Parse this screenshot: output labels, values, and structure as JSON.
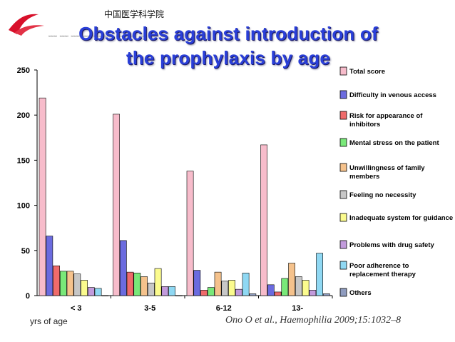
{
  "logo": {
    "text": "中国医学科学院"
  },
  "slide": {
    "title_line1": "Obstacles against introduction of",
    "title_line2": "the prophylaxis by age",
    "xunit": "yrs of age",
    "citation": "Ono O et al., Haemophilia 2009;15:1032–8"
  },
  "chart_data": {
    "type": "bar",
    "title": "Obstacles against introduction of the prophylaxis by age",
    "xlabel": "yrs of age",
    "ylabel": "",
    "ylim": [
      0,
      250
    ],
    "yticks": [
      0,
      50,
      100,
      150,
      200,
      250
    ],
    "categories": [
      "< 3",
      "3-5",
      "6-12",
      "13-"
    ],
    "legend_position": "right",
    "series": [
      {
        "name": "Total score",
        "color": "#f7bccb",
        "values": [
          219,
          201,
          138,
          167
        ]
      },
      {
        "name": "Difficulty in venous access",
        "color": "#6b6bdf",
        "values": [
          66,
          61,
          28,
          12
        ]
      },
      {
        "name": "Risk for appearance of inhibitors",
        "color": "#ef6b6b",
        "values": [
          33,
          26,
          6,
          4
        ]
      },
      {
        "name": "Mental stress on the patient",
        "color": "#79e879",
        "values": [
          27,
          25,
          9,
          19
        ]
      },
      {
        "name": "Unwillingness of family members",
        "color": "#f5c28c",
        "values": [
          27,
          21,
          26,
          36
        ]
      },
      {
        "name": "Feeling no necessity",
        "color": "#c7c7c7",
        "values": [
          24,
          14,
          16,
          21
        ]
      },
      {
        "name": "Inadequate system for guidance",
        "color": "#fbfb8e",
        "values": [
          17,
          30,
          17,
          17
        ]
      },
      {
        "name": "Problems with drug safety",
        "color": "#c29bdc",
        "values": [
          9,
          10,
          7,
          6
        ]
      },
      {
        "name": "Poor adherence to replacement therapy",
        "color": "#8fd8f3",
        "values": [
          8,
          10,
          25,
          47
        ]
      },
      {
        "name": "Others",
        "color": "#8f9cbf",
        "values": [
          0,
          0,
          2,
          2
        ]
      }
    ]
  }
}
